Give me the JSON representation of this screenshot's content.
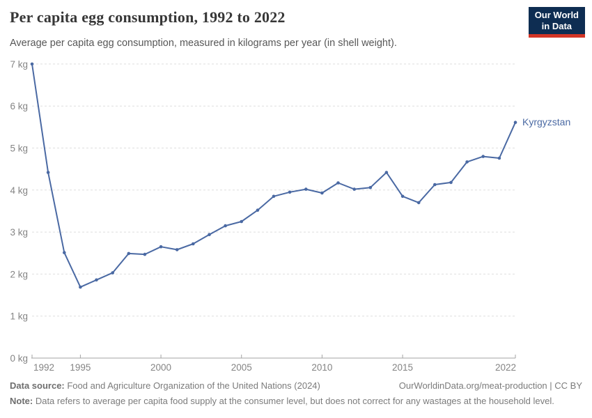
{
  "header": {
    "title": "Per capita egg consumption, 1992 to 2022",
    "subtitle": "Average per capita egg consumption, measured in kilograms per year (in shell weight).",
    "logo": {
      "line1": "Our World",
      "line2": "in Data"
    }
  },
  "chart_data": {
    "type": "line",
    "title": "Per capita egg consumption, 1992 to 2022",
    "xlabel": "",
    "ylabel": "",
    "x": [
      1992,
      1993,
      1994,
      1995,
      1996,
      1997,
      1998,
      1999,
      2000,
      2001,
      2002,
      2003,
      2004,
      2005,
      2006,
      2007,
      2008,
      2009,
      2010,
      2011,
      2012,
      2013,
      2014,
      2015,
      2016,
      2017,
      2018,
      2019,
      2020,
      2021,
      2022
    ],
    "series": [
      {
        "name": "Kyrgyzstan",
        "values": [
          7.0,
          4.42,
          2.51,
          1.69,
          1.86,
          2.03,
          2.49,
          2.47,
          2.65,
          2.58,
          2.72,
          2.94,
          3.15,
          3.25,
          3.52,
          3.85,
          3.95,
          4.02,
          3.93,
          4.17,
          4.02,
          4.06,
          4.42,
          3.85,
          3.7,
          4.13,
          4.18,
          4.67,
          4.8,
          4.76,
          5.61
        ]
      }
    ],
    "xlim": [
      1992,
      2022
    ],
    "ylim": [
      0,
      7
    ],
    "x_ticks": [
      1992,
      1995,
      2000,
      2005,
      2010,
      2015,
      2022
    ],
    "y_ticks": [
      0,
      1,
      2,
      3,
      4,
      5,
      6,
      7
    ],
    "y_tick_suffix": " kg",
    "grid": "horizontal-dashed",
    "legend_position": "end-of-line-label"
  },
  "colors": {
    "line": "#4a69a3",
    "grid": "#dedede",
    "axis": "#a3a3a3",
    "axis_text": "#848484",
    "logo_bg": "#0e2d52",
    "logo_stripe": "#d33526"
  },
  "footer": {
    "source_label": "Data source:",
    "source_text": " Food and Agriculture Organization of the United Nations (2024)",
    "link_text": "OurWorldinData.org/meat-production | CC BY",
    "note_label": "Note:",
    "note_text": " Data refers to average per capita food supply at the consumer level, but does not correct for any wastages at the household level."
  }
}
